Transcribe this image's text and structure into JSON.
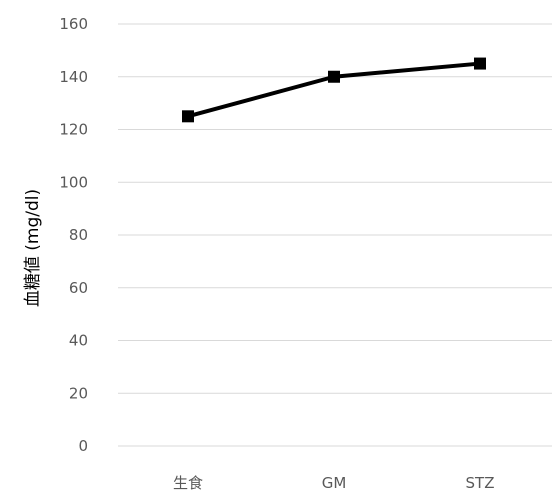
{
  "chart_data": {
    "type": "line",
    "categories": [
      "生食",
      "GM",
      "STZ"
    ],
    "series": [
      {
        "values": [
          125,
          140,
          145
        ]
      }
    ],
    "ylabel": "血糖値 (mg/dl)",
    "ylim": [
      0,
      160
    ],
    "yticks": [
      0,
      20,
      40,
      60,
      80,
      100,
      120,
      140,
      160
    ],
    "grid": true,
    "legend": "none",
    "colors": {
      "line": "#000000",
      "grid": "#d9d9d9",
      "tick_text": "#595959"
    }
  }
}
